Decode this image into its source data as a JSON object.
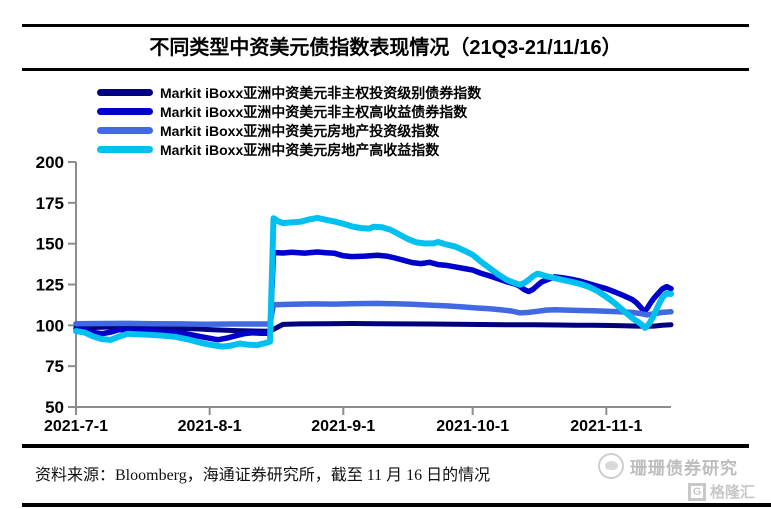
{
  "header": {
    "title": "不同类型中资美元债指数表现情况（21Q3-21/11/16）"
  },
  "footer": {
    "source_text": "资料来源：Bloomberg，海通证券研究所，截至 11 月 16 日的情况",
    "watermark_text": "珊珊债券研究",
    "logo_glyph": "G",
    "logo_text": "格隆汇"
  },
  "chart_data": {
    "type": "line",
    "title": "不同类型中资美元债指数表现情况（21Q3-21/11/16）",
    "xlabel": "",
    "ylabel": "",
    "grid": false,
    "legend_position": "top-left",
    "axis_color": "#8c8c8c",
    "x_axis": {
      "tick_labels": [
        "2021-7-1",
        "2021-8-1",
        "2021-9-1",
        "2021-10-1",
        "2021-11-1"
      ],
      "tick_days": [
        0,
        31,
        62,
        92,
        123
      ],
      "range_days": [
        0,
        138
      ],
      "start_date": "2021-7-1",
      "end_date": "2021-11-16"
    },
    "y_axis": {
      "ticks": [
        50,
        75,
        100,
        125,
        150,
        175,
        200
      ],
      "range": [
        50,
        200
      ]
    },
    "series": [
      {
        "name": "Markit iBoxx亚洲中资美元非主权投资级别债券指数",
        "color": "#000080",
        "stroke_width": 5,
        "points": [
          [
            0,
            99
          ],
          [
            4,
            98.7
          ],
          [
            8,
            99
          ],
          [
            12,
            98.9
          ],
          [
            16,
            98.7
          ],
          [
            20,
            98.5
          ],
          [
            24,
            98.2
          ],
          [
            28,
            97.8
          ],
          [
            31,
            97.4
          ],
          [
            34,
            97.1
          ],
          [
            37,
            96.8
          ],
          [
            40,
            96.6
          ],
          [
            43,
            96.5
          ],
          [
            45,
            96.4
          ],
          [
            48,
            100.6
          ],
          [
            52,
            100.9
          ],
          [
            58,
            101
          ],
          [
            64,
            101.1
          ],
          [
            70,
            101
          ],
          [
            76,
            100.9
          ],
          [
            82,
            100.8
          ],
          [
            88,
            100.7
          ],
          [
            94,
            100.5
          ],
          [
            100,
            100.4
          ],
          [
            106,
            100.3
          ],
          [
            112,
            100.2
          ],
          [
            116,
            100.1
          ],
          [
            120,
            100
          ],
          [
            124,
            99.9
          ],
          [
            127,
            99.7
          ],
          [
            130,
            99.5
          ],
          [
            132,
            99.4
          ],
          [
            134,
            99.5
          ],
          [
            136,
            100
          ],
          [
            138,
            100.4
          ]
        ]
      },
      {
        "name": "Markit iBoxx亚洲中资美元非主权高收益债券指数",
        "color": "#0000cd",
        "stroke_width": 5.5,
        "points": [
          [
            0,
            98
          ],
          [
            2,
            97.2
          ],
          [
            4,
            95.6
          ],
          [
            6,
            94.9
          ],
          [
            8,
            95.8
          ],
          [
            10,
            97.4
          ],
          [
            13,
            97.1
          ],
          [
            16,
            96.7
          ],
          [
            19,
            96.4
          ],
          [
            22,
            96
          ],
          [
            25,
            95.1
          ],
          [
            28,
            93.6
          ],
          [
            30,
            92.6
          ],
          [
            32,
            91.6
          ],
          [
            33,
            91.2
          ],
          [
            35,
            92.2
          ],
          [
            37,
            93.6
          ],
          [
            39,
            94.9
          ],
          [
            41,
            95.4
          ],
          [
            43,
            95.2
          ],
          [
            45,
            95.1
          ],
          [
            45.8,
            144.6
          ],
          [
            48,
            144.3
          ],
          [
            50,
            144.8
          ],
          [
            53,
            144.2
          ],
          [
            56,
            144.9
          ],
          [
            58,
            144.4
          ],
          [
            60,
            144.1
          ],
          [
            62,
            142.6
          ],
          [
            64,
            142.1
          ],
          [
            67,
            142.4
          ],
          [
            70,
            142.9
          ],
          [
            72,
            142.4
          ],
          [
            74,
            141.2
          ],
          [
            76,
            139.8
          ],
          [
            78,
            138.4
          ],
          [
            80,
            137.8
          ],
          [
            82,
            138.6
          ],
          [
            84,
            137.2
          ],
          [
            86,
            136.7
          ],
          [
            88,
            135.8
          ],
          [
            90,
            134.8
          ],
          [
            92,
            133.8
          ],
          [
            94,
            131.8
          ],
          [
            96,
            130.2
          ],
          [
            98,
            128.4
          ],
          [
            100,
            126.6
          ],
          [
            102,
            125.2
          ],
          [
            103,
            123.8
          ],
          [
            104,
            121.8
          ],
          [
            105,
            120.7
          ],
          [
            106,
            122
          ],
          [
            107,
            124.4
          ],
          [
            108,
            126.6
          ],
          [
            110,
            128.6
          ],
          [
            111,
            129.7
          ],
          [
            113,
            129.1
          ],
          [
            115,
            128.2
          ],
          [
            117,
            127
          ],
          [
            119,
            125.4
          ],
          [
            121,
            123.9
          ],
          [
            123,
            122.4
          ],
          [
            125,
            120.4
          ],
          [
            127,
            118.2
          ],
          [
            129,
            115.8
          ],
          [
            130,
            113.8
          ],
          [
            131,
            111
          ],
          [
            131.8,
            108.4
          ],
          [
            132.5,
            110.5
          ],
          [
            133.2,
            113.5
          ],
          [
            134,
            116.5
          ],
          [
            135,
            119.5
          ],
          [
            136,
            122.3
          ],
          [
            137,
            123.7
          ],
          [
            138,
            122.4
          ]
        ]
      },
      {
        "name": "Markit iBoxx亚洲中资美元房地产投资级指数",
        "color": "#4169e1",
        "stroke_width": 5.5,
        "points": [
          [
            0,
            101
          ],
          [
            6,
            101.1
          ],
          [
            12,
            101.2
          ],
          [
            18,
            101
          ],
          [
            24,
            100.9
          ],
          [
            30,
            100.7
          ],
          [
            36,
            100.8
          ],
          [
            42,
            100.8
          ],
          [
            45,
            100.8
          ],
          [
            45.8,
            112.6
          ],
          [
            50,
            112.9
          ],
          [
            55,
            113.1
          ],
          [
            60,
            113
          ],
          [
            65,
            113.3
          ],
          [
            70,
            113.4
          ],
          [
            74,
            113.2
          ],
          [
            78,
            112.9
          ],
          [
            82,
            112.4
          ],
          [
            86,
            111.9
          ],
          [
            90,
            111.2
          ],
          [
            93,
            110.6
          ],
          [
            96,
            110.1
          ],
          [
            99,
            109.4
          ],
          [
            101,
            108.8
          ],
          [
            103,
            107.6
          ],
          [
            105,
            107.9
          ],
          [
            107,
            108.6
          ],
          [
            109,
            109.3
          ],
          [
            111,
            109.5
          ],
          [
            114,
            109.3
          ],
          [
            117,
            109.1
          ],
          [
            120,
            108.9
          ],
          [
            123,
            108.6
          ],
          [
            126,
            108.3
          ],
          [
            129,
            107.9
          ],
          [
            131,
            107.2
          ],
          [
            132.5,
            106.4
          ],
          [
            134,
            107.1
          ],
          [
            136,
            107.9
          ],
          [
            138,
            108.3
          ]
        ]
      },
      {
        "name": "Markit iBoxx亚洲中资美元房地产高收益指数",
        "color": "#00c0f0",
        "stroke_width": 6,
        "points": [
          [
            0,
            96.5
          ],
          [
            2,
            95.6
          ],
          [
            4,
            93.2
          ],
          [
            6,
            91.6
          ],
          [
            8,
            91.1
          ],
          [
            10,
            93.1
          ],
          [
            12,
            94.9
          ],
          [
            14,
            94.6
          ],
          [
            17,
            94.2
          ],
          [
            20,
            93.7
          ],
          [
            23,
            93
          ],
          [
            26,
            91.4
          ],
          [
            28,
            90
          ],
          [
            30,
            88.7
          ],
          [
            32,
            87.7
          ],
          [
            34,
            87
          ],
          [
            36,
            87.6
          ],
          [
            38,
            88.9
          ],
          [
            40,
            88.1
          ],
          [
            42,
            87.9
          ],
          [
            44,
            89.2
          ],
          [
            45,
            90.1
          ],
          [
            45.8,
            165.6
          ],
          [
            47,
            163.6
          ],
          [
            48,
            162.6
          ],
          [
            50,
            163
          ],
          [
            52,
            163.4
          ],
          [
            54,
            164.8
          ],
          [
            56,
            165.8
          ],
          [
            58,
            164.6
          ],
          [
            60,
            163.5
          ],
          [
            62,
            162.2
          ],
          [
            64,
            160.6
          ],
          [
            66,
            159.6
          ],
          [
            68,
            159.2
          ],
          [
            69,
            160.3
          ],
          [
            71,
            160
          ],
          [
            73,
            158.4
          ],
          [
            75,
            155.6
          ],
          [
            77,
            152.8
          ],
          [
            79,
            150.8
          ],
          [
            81,
            150.1
          ],
          [
            83,
            150.3
          ],
          [
            84,
            151
          ],
          [
            86,
            149.4
          ],
          [
            88,
            148.2
          ],
          [
            90,
            145.8
          ],
          [
            92,
            143.2
          ],
          [
            94,
            138.8
          ],
          [
            96,
            134.9
          ],
          [
            98,
            131
          ],
          [
            100,
            127.7
          ],
          [
            102,
            125.7
          ],
          [
            103,
            124.9
          ],
          [
            104,
            126
          ],
          [
            105,
            127.9
          ],
          [
            106,
            130
          ],
          [
            107,
            131.6
          ],
          [
            108,
            131
          ],
          [
            109,
            130.1
          ],
          [
            111,
            128.9
          ],
          [
            113,
            127.7
          ],
          [
            115,
            126.6
          ],
          [
            117,
            125.3
          ],
          [
            119,
            123.5
          ],
          [
            121,
            120.9
          ],
          [
            123,
            117.5
          ],
          [
            125,
            113.5
          ],
          [
            127,
            108.9
          ],
          [
            129,
            104.5
          ],
          [
            131,
            100.9
          ],
          [
            132,
            98.4
          ],
          [
            133,
            101.2
          ],
          [
            134,
            106
          ],
          [
            135,
            111.9
          ],
          [
            136,
            116.9
          ],
          [
            137,
            119.6
          ],
          [
            138,
            119.2
          ]
        ]
      }
    ]
  }
}
